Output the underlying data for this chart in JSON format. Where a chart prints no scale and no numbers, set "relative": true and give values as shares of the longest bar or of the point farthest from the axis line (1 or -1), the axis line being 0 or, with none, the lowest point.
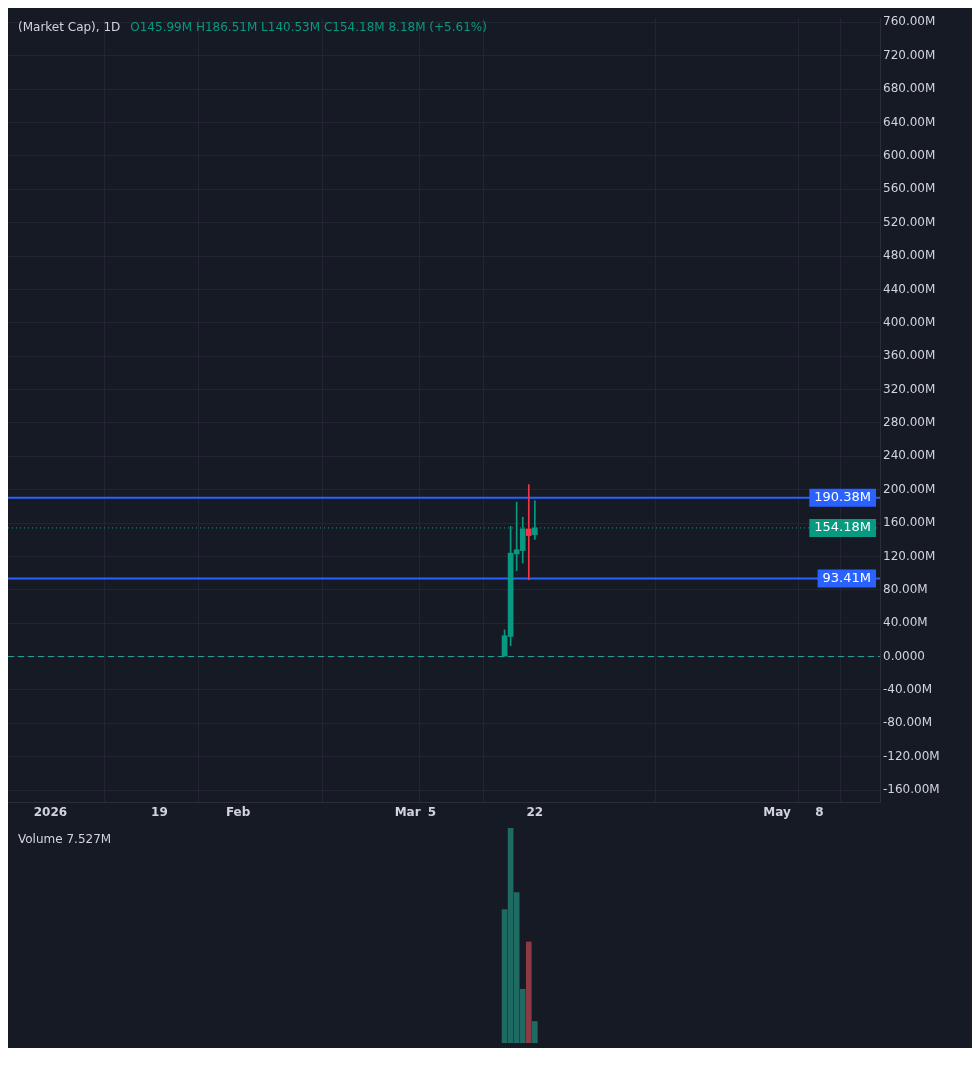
{
  "chart_data": [
    {
      "type": "candlestick",
      "title": "(Market Cap), 1D",
      "annotations": [
        "O145.99M H186.51M L140.53M C154.18M 8.18M (+5.61%)"
      ],
      "x": [
        "2026-03-17",
        "2026-03-18",
        "2026-03-19",
        "2026-03-20",
        "2026-03-21",
        "2026-03-22"
      ],
      "ohlc": [
        [
          0,
          32,
          0,
          25
        ],
        [
          24,
          156,
          13,
          124
        ],
        [
          123,
          185,
          103,
          128
        ],
        [
          127,
          167,
          112,
          153
        ],
        [
          153,
          206,
          92,
          145
        ],
        [
          145.99,
          186.51,
          140.53,
          154.18
        ]
      ],
      "colors": [
        "#089981",
        "#089981",
        "#089981",
        "#089981",
        "#f23645",
        "#089981"
      ],
      "xlim": [
        "2025-12-25",
        "2026-05-18"
      ],
      "xticks": [
        {
          "value": "2026-01-01",
          "label": "2026"
        },
        {
          "value": "2026-01-19",
          "label": "19"
        },
        {
          "value": "2026-02-01",
          "label": "Feb"
        },
        {
          "value": "2026-03-01",
          "label": "Mar"
        },
        {
          "value": "2026-03-05",
          "label": "5"
        },
        {
          "value": "2026-03-22",
          "label": "22"
        },
        {
          "value": "2026-05-01",
          "label": "May"
        },
        {
          "value": "2026-05-08",
          "label": "8"
        }
      ],
      "ylim": [
        -175,
        765
      ],
      "yticks": [
        {
          "value": -160,
          "label": "-160.00M"
        },
        {
          "value": -120,
          "label": "-120.00M"
        },
        {
          "value": -80,
          "label": "-80.00M"
        },
        {
          "value": -40,
          "label": "-40.00M"
        },
        {
          "value": 0,
          "label": "0.0000"
        },
        {
          "value": 40,
          "label": "40.00M"
        },
        {
          "value": 80,
          "label": "80.00M"
        },
        {
          "value": 120,
          "label": "120.00M"
        },
        {
          "value": 160,
          "label": "160.00M"
        },
        {
          "value": 200,
          "label": "200.00M"
        },
        {
          "value": 240,
          "label": "240.00M"
        },
        {
          "value": 280,
          "label": "280.00M"
        },
        {
          "value": 320,
          "label": "320.00M"
        },
        {
          "value": 360,
          "label": "360.00M"
        },
        {
          "value": 400,
          "label": "400.00M"
        },
        {
          "value": 440,
          "label": "440.00M"
        },
        {
          "value": 480,
          "label": "480.00M"
        },
        {
          "value": 520,
          "label": "520.00M"
        },
        {
          "value": 560,
          "label": "560.00M"
        },
        {
          "value": 600,
          "label": "600.00M"
        },
        {
          "value": 640,
          "label": "640.00M"
        },
        {
          "value": 680,
          "label": "680.00M"
        },
        {
          "value": 720,
          "label": "720.00M"
        },
        {
          "value": 760,
          "label": "760.00M"
        }
      ],
      "ref_lines": [
        {
          "axis": "y",
          "value": 190.38,
          "label": "190.38M",
          "color": "#2962ff",
          "line_style": "solid"
        },
        {
          "axis": "y",
          "value": 93.41,
          "label": "93.41M",
          "color": "#2962ff",
          "line_style": "solid"
        },
        {
          "axis": "y",
          "value": 154.18,
          "label": "154.18M",
          "color": "#089981",
          "line_style": "dotted"
        },
        {
          "axis": "y",
          "value": 0,
          "color": "#26a69a",
          "line_style": "dashed"
        }
      ],
      "grid": true
    },
    {
      "type": "bar",
      "relative": true,
      "annotations": [
        "Volume 7.527M"
      ],
      "categories": [
        null,
        null,
        null,
        null,
        null,
        null
      ],
      "values": [
        0.62,
        1,
        0.7,
        0.25,
        0.47,
        0.1
      ],
      "colors": [
        "#1f6b63",
        "#1f6b63",
        "#1f6b63",
        "#1f6b63",
        "#8c3a45",
        "#1f6b63"
      ]
    }
  ]
}
